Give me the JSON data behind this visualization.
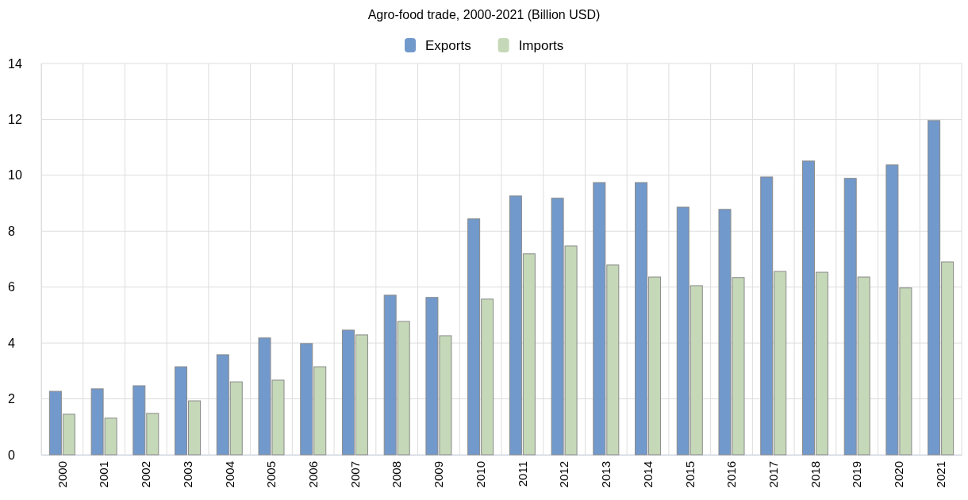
{
  "chart_data": {
    "type": "bar",
    "title": "Agro-food trade, 2000-2021 (Billion USD)",
    "categories": [
      "2000",
      "2001",
      "2002",
      "2003",
      "2004",
      "2005",
      "2006",
      "2007",
      "2008",
      "2009",
      "2010",
      "2011",
      "2012",
      "2013",
      "2014",
      "2015",
      "2016",
      "2017",
      "2018",
      "2019",
      "2020",
      "2021"
    ],
    "series": [
      {
        "name": "Exports",
        "color": "#7299cb",
        "values": [
          2.27,
          2.36,
          2.47,
          3.15,
          3.58,
          4.18,
          3.98,
          4.46,
          5.71,
          5.63,
          8.44,
          9.26,
          9.18,
          9.74,
          9.74,
          8.86,
          8.78,
          9.94,
          10.51,
          9.89,
          10.37,
          11.96
        ]
      },
      {
        "name": "Imports",
        "color": "#c5d8b8",
        "values": [
          1.45,
          1.31,
          1.48,
          1.93,
          2.61,
          2.67,
          3.15,
          4.29,
          4.77,
          4.26,
          5.57,
          7.19,
          7.47,
          6.79,
          6.36,
          6.05,
          6.34,
          6.56,
          6.53,
          6.36,
          5.97,
          6.9
        ]
      }
    ],
    "ylim": [
      0,
      14
    ],
    "yticks": [
      0,
      2,
      4,
      6,
      8,
      10,
      12,
      14
    ],
    "grid": true,
    "legend": "top"
  }
}
